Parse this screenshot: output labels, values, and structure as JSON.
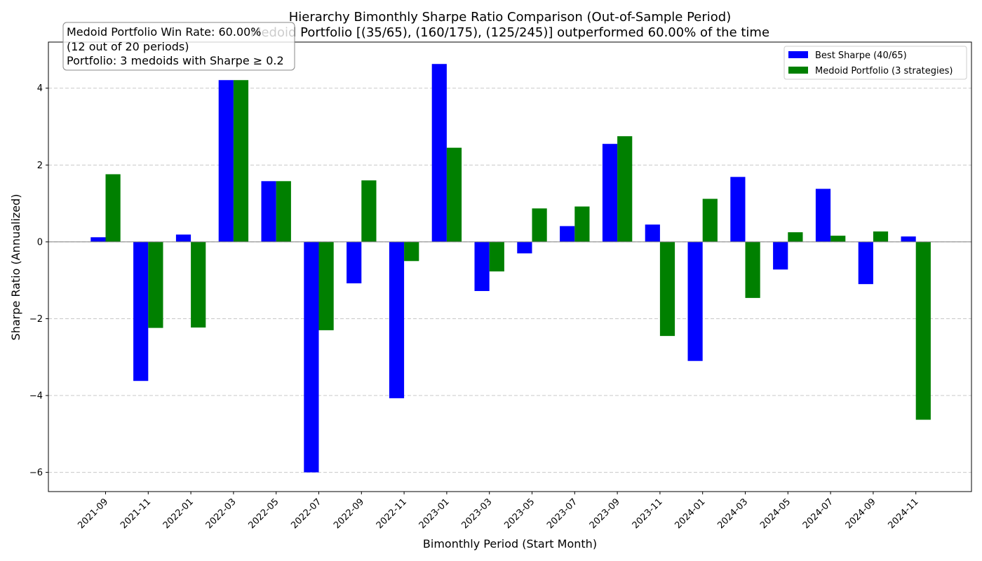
{
  "chart_data": {
    "type": "bar",
    "title": "Hierarchy Bimonthly Sharpe Ratio Comparison (Out-of-Sample Period)",
    "subtitle": "Medoid Portfolio [(35/65), (160/175), (125/245)] outperformed 60.00% of the time",
    "xlabel": "Bimonthly Period (Start Month)",
    "ylabel": "Sharpe Ratio (Annualized)",
    "ylim": [
      -6.5,
      5.2
    ],
    "yticks": [
      -6,
      -4,
      -2,
      0,
      2,
      4
    ],
    "grid": true,
    "legend_position": "top-right",
    "categories": [
      "2021-09",
      "2021-11",
      "2022-01",
      "2022-03",
      "2022-05",
      "2022-07",
      "2022-09",
      "2022-11",
      "2023-01",
      "2023-03",
      "2023-05",
      "2023-07",
      "2023-09",
      "2023-11",
      "2024-01",
      "2024-03",
      "2024-05",
      "2024-07",
      "2024-09",
      "2024-11"
    ],
    "series": [
      {
        "name": "Best Sharpe (40/65)",
        "color": "#0000ff",
        "values": [
          0.12,
          -3.62,
          0.19,
          4.21,
          1.58,
          -6.0,
          -1.08,
          -4.07,
          4.63,
          -1.28,
          -0.3,
          0.41,
          2.55,
          0.45,
          -3.1,
          1.69,
          -0.72,
          1.38,
          -1.1,
          0.14
        ]
      },
      {
        "name": "Medoid Portfolio (3 strategies)",
        "color": "#008000",
        "values": [
          1.76,
          -2.24,
          -2.23,
          4.21,
          1.58,
          -2.3,
          1.6,
          -0.5,
          2.45,
          -0.77,
          0.87,
          0.92,
          2.75,
          -2.45,
          1.12,
          -1.46,
          0.25,
          0.16,
          0.27,
          -4.63
        ]
      }
    ],
    "annotation": {
      "line1": "Medoid Portfolio Win Rate: 60.00%",
      "line2": "(12 out of 20 periods)",
      "line3": "Portfolio: 3 medoids with Sharpe ≥ 0.2"
    }
  }
}
